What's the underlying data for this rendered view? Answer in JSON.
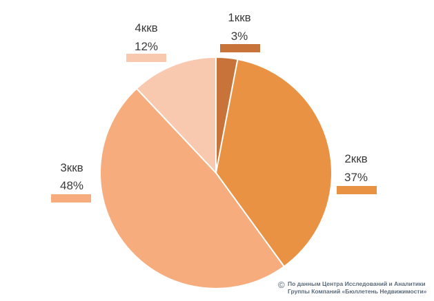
{
  "chart_data": {
    "type": "pie",
    "title": "",
    "categories": [
      "1ккв",
      "2ккв",
      "3ккв",
      "4ккв"
    ],
    "values": [
      3,
      37,
      48,
      12
    ],
    "value_labels": [
      "3%",
      "37%",
      "48%",
      "12%"
    ],
    "colors": [
      "#c8733a",
      "#e99244",
      "#f6ac7c",
      "#f8c9ae"
    ],
    "start_angle_deg": 0,
    "direction": "clockwise"
  },
  "source": {
    "symbol": "©",
    "line1": "По данным Центра Исследований и Аналитики",
    "line2": "Группы Компаний «Бюллетень Недвижимости»"
  }
}
